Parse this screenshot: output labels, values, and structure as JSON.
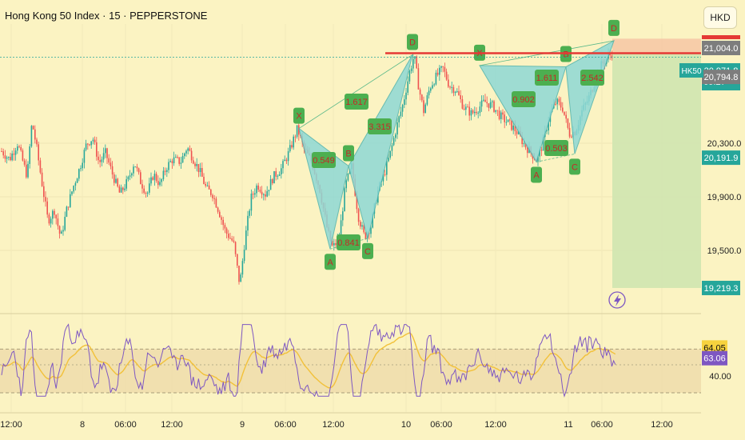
{
  "header": {
    "title": "Hong Kong 50 Index · 15 · PEPPERSTONE",
    "currency": "HKD"
  },
  "price_axis": {
    "ticks": [
      "20,300.0",
      "19,900.0",
      "19,500.0"
    ],
    "labels": [
      {
        "text": "21,004.0",
        "bg": "#7d7d7d",
        "value": 21004
      },
      {
        "text": "20,971.8",
        "bg": "#26a69a",
        "value": 20971.8,
        "sub": "09:27"
      },
      {
        "text": "20,794.8",
        "bg": "#7d7d7d",
        "value": 20794.8
      },
      {
        "text": "20,191.9",
        "bg": "#26a69a",
        "value": 20191.9
      },
      {
        "text": "19,219.3",
        "bg": "#26a69a",
        "value": 19219.3
      }
    ],
    "symbol_tag": "HK50"
  },
  "rsi_axis": {
    "ticks": [
      "40.00"
    ],
    "labels": [
      {
        "text": "64.05",
        "bg": "#f7d23e",
        "color": "#111",
        "value": 64.05
      },
      {
        "text": "63.06",
        "bg": "#7e57c2",
        "color": "#fff",
        "value": 63.06
      }
    ]
  },
  "time_axis": {
    "labels": [
      "12:00",
      "8",
      "06:00",
      "12:00",
      "9",
      "06:00",
      "12:00",
      "10",
      "06:00",
      "12:00",
      "11",
      "06:00",
      "12:00"
    ]
  },
  "chart_data": {
    "type": "candlestick",
    "title": "Hong Kong 50 Index · 15 · PEPPERSTONE",
    "ylim": [
      19040,
      21130
    ],
    "resistance_level": 20971.8,
    "harmonic_patterns": [
      {
        "points": [
          [
            "X",
            20410
          ],
          [
            "A",
            19510
          ],
          [
            "B",
            20130
          ],
          [
            "C",
            19590
          ],
          [
            "D",
            20960
          ]
        ],
        "ratios": [
          "0.549",
          "0.841",
          "1.617",
          "3.315"
        ]
      },
      {
        "points": [
          [
            "X",
            20880
          ],
          [
            "A",
            20160
          ],
          [
            "B",
            20870
          ],
          [
            "C",
            20220
          ],
          [
            "D",
            21065
          ]
        ],
        "ratios": [
          "0.902",
          "0.503",
          "1.611",
          "2.542"
        ]
      }
    ],
    "trade_zone": {
      "entry": 20971.8,
      "stop": 21004.0,
      "target": 19219.3
    },
    "rsi": {
      "levels": [
        64.05,
        40.0
      ],
      "last": 63.06,
      "signal_last": 64.05
    },
    "price_path": [
      [
        2,
        20240
      ],
      [
        12,
        20180
      ],
      [
        22,
        20300
      ],
      [
        34,
        20050
      ],
      [
        40,
        20460
      ],
      [
        46,
        20260
      ],
      [
        52,
        20020
      ],
      [
        60,
        19720
      ],
      [
        68,
        19800
      ],
      [
        76,
        19590
      ],
      [
        84,
        19820
      ],
      [
        92,
        19980
      ],
      [
        100,
        20120
      ],
      [
        108,
        20290
      ],
      [
        116,
        20340
      ],
      [
        124,
        20150
      ],
      [
        132,
        20230
      ],
      [
        140,
        20080
      ],
      [
        150,
        19920
      ],
      [
        160,
        20020
      ],
      [
        168,
        20160
      ],
      [
        176,
        20010
      ],
      [
        184,
        19920
      ],
      [
        192,
        20070
      ],
      [
        200,
        19990
      ],
      [
        208,
        20120
      ],
      [
        216,
        20180
      ],
      [
        226,
        20160
      ],
      [
        234,
        20270
      ],
      [
        242,
        20180
      ],
      [
        250,
        20090
      ],
      [
        258,
        19960
      ],
      [
        266,
        19920
      ],
      [
        274,
        19790
      ],
      [
        282,
        19640
      ],
      [
        292,
        19560
      ],
      [
        300,
        19240
      ],
      [
        306,
        19560
      ],
      [
        314,
        19890
      ],
      [
        322,
        19990
      ],
      [
        332,
        19920
      ],
      [
        342,
        20050
      ],
      [
        352,
        20110
      ],
      [
        362,
        20240
      ],
      [
        372,
        20410
      ],
      [
        380,
        20260
      ],
      [
        390,
        20160
      ],
      [
        400,
        19960
      ],
      [
        410,
        19640
      ],
      [
        416,
        19520
      ],
      [
        424,
        19580
      ],
      [
        432,
        19980
      ],
      [
        440,
        20130
      ],
      [
        448,
        19760
      ],
      [
        456,
        19600
      ],
      [
        464,
        19680
      ],
      [
        472,
        19930
      ],
      [
        480,
        20060
      ],
      [
        488,
        20220
      ],
      [
        496,
        20420
      ],
      [
        504,
        20590
      ],
      [
        512,
        20820
      ],
      [
        518,
        20960
      ],
      [
        524,
        20710
      ],
      [
        530,
        20540
      ],
      [
        538,
        20720
      ],
      [
        546,
        20800
      ],
      [
        554,
        20860
      ],
      [
        562,
        20730
      ],
      [
        570,
        20700
      ],
      [
        580,
        20570
      ],
      [
        590,
        20520
      ],
      [
        598,
        20560
      ],
      [
        606,
        20610
      ],
      [
        616,
        20580
      ],
      [
        626,
        20500
      ],
      [
        636,
        20450
      ],
      [
        646,
        20390
      ],
      [
        656,
        20290
      ],
      [
        664,
        20230
      ],
      [
        672,
        20170
      ],
      [
        680,
        20320
      ],
      [
        688,
        20520
      ],
      [
        696,
        20610
      ],
      [
        704,
        20560
      ],
      [
        712,
        20370
      ],
      [
        720,
        20390
      ],
      [
        728,
        20540
      ],
      [
        736,
        20630
      ],
      [
        744,
        20760
      ],
      [
        752,
        20880
      ],
      [
        760,
        20940
      ],
      [
        766,
        20971.8
      ]
    ]
  }
}
